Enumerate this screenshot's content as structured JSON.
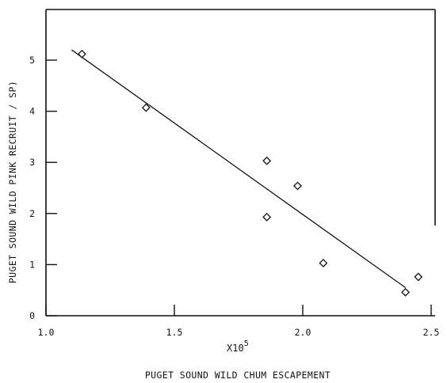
{
  "chart_data": {
    "type": "scatter",
    "xlabel": "PUGET SOUND WILD CHUM ESCAPEMENT",
    "ylabel": "PUGET SOUND WILD PINK RECRUIT / SP)",
    "x_multiplier": "X10",
    "x_multiplier_exp": "5",
    "xlim": [
      1.0,
      2.5
    ],
    "ylim": [
      0,
      5.9
    ],
    "x_ticks": [
      1.0,
      1.5,
      2.0,
      2.5
    ],
    "x_tick_labels": [
      "1.0",
      "1.5",
      "2.0",
      "2.5"
    ],
    "y_ticks": [
      0,
      1,
      2,
      3,
      4,
      5
    ],
    "y_tick_labels": [
      "0",
      "1",
      "2",
      "3",
      "4",
      "5"
    ],
    "grid": false,
    "marker": "diamond",
    "points": [
      {
        "x": 1.14,
        "y": 5.12
      },
      {
        "x": 1.39,
        "y": 4.07
      },
      {
        "x": 1.86,
        "y": 3.03
      },
      {
        "x": 1.86,
        "y": 1.93
      },
      {
        "x": 1.98,
        "y": 2.54
      },
      {
        "x": 2.08,
        "y": 1.03
      },
      {
        "x": 2.4,
        "y": 0.46
      },
      {
        "x": 2.45,
        "y": 0.76
      }
    ],
    "fit_line": [
      {
        "x": 1.1,
        "y": 5.2
      },
      {
        "x": 2.4,
        "y": 0.55
      }
    ]
  }
}
